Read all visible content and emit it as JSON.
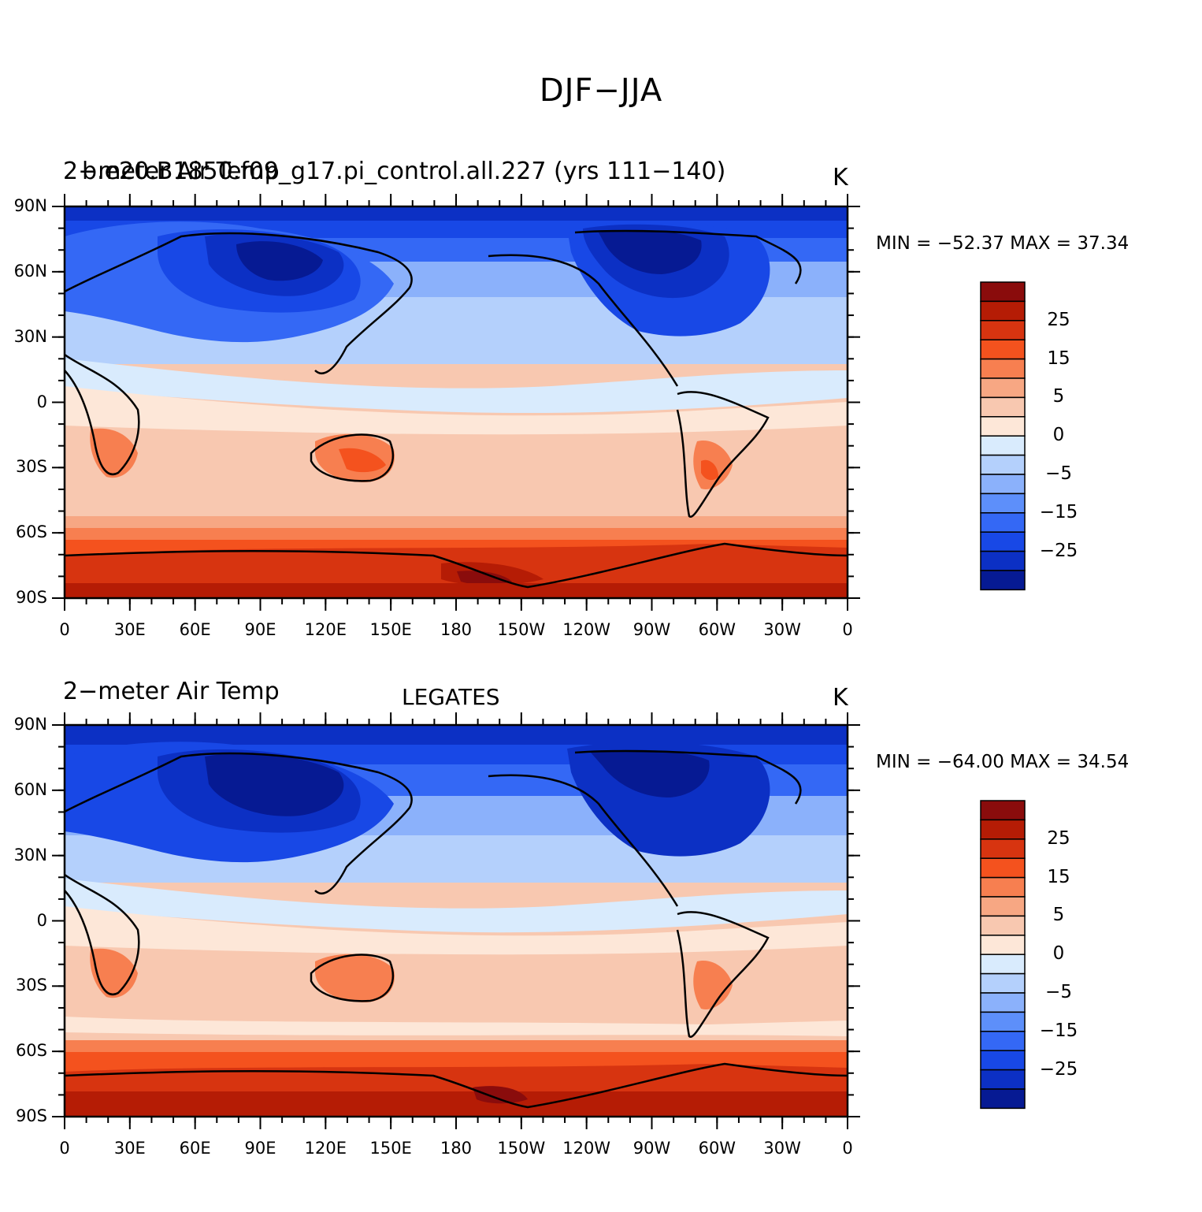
{
  "title": "DJF−JJA",
  "panels": [
    {
      "left_title": "2−meter Air Temp",
      "overlap_title": "b.e20.B1850.f09_g17.pi_control.all.227 (yrs 111−140)",
      "center_title": "",
      "units": "K",
      "min_max": "MIN = −52.37  MAX =  37.34"
    },
    {
      "left_title": "2−meter Air Temp",
      "overlap_title": "",
      "center_title": "LEGATES",
      "units": "K",
      "min_max": "MIN = −64.00  MAX =  34.54"
    }
  ],
  "lat_ticks": [
    "90N",
    "60N",
    "30N",
    "0",
    "30S",
    "60S",
    "90S"
  ],
  "lon_ticks": [
    "0",
    "30E",
    "60E",
    "90E",
    "120E",
    "150E",
    "180",
    "150W",
    "120W",
    "90W",
    "60W",
    "30W",
    "0"
  ],
  "colorbar": {
    "labels": [
      "25",
      "15",
      "5",
      "0",
      "−5",
      "−15",
      "−25"
    ],
    "colors": [
      "#8a0c0c",
      "#b51c05",
      "#d73410",
      "#f4521e",
      "#f77f50",
      "#f7a783",
      "#f8c8b0",
      "#fde7d8",
      "#d9ebfd",
      "#b4d0fc",
      "#8bb1fb",
      "#5d8ffa",
      "#3468f5",
      "#1848e6",
      "#0c30c4",
      "#061a93"
    ]
  }
}
